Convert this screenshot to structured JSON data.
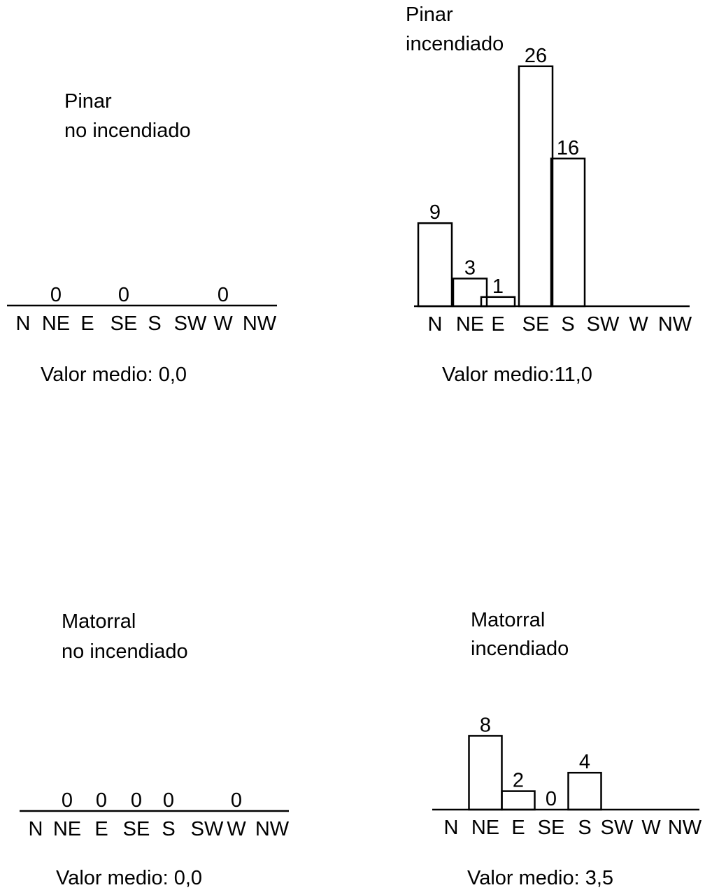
{
  "chart_data": [
    {
      "type": "bar",
      "title_lines": [
        "Pinar",
        "no incendiado"
      ],
      "categories": [
        "N",
        "NE",
        "E",
        "SE",
        "S",
        "SW",
        "W",
        "NW"
      ],
      "values": [
        null,
        0,
        null,
        0,
        null,
        null,
        0,
        null
      ],
      "data_labels": [
        "",
        "0",
        "",
        "0",
        "",
        "",
        "0",
        ""
      ],
      "ylim": [
        0,
        26
      ],
      "footer": "Valor medio: 0,0"
    },
    {
      "type": "bar",
      "title_lines": [
        "Pinar",
        "incendiado"
      ],
      "categories": [
        "N",
        "NE",
        "E",
        "SE",
        "S",
        "SW",
        "W",
        "NW"
      ],
      "values": [
        9,
        3,
        1,
        26,
        16,
        null,
        null,
        null
      ],
      "data_labels": [
        "9",
        "3",
        "1",
        "26",
        "16",
        "",
        "",
        ""
      ],
      "ylim": [
        0,
        26
      ],
      "footer": "Valor medio:11,0"
    },
    {
      "type": "bar",
      "title_lines": [
        "Matorral",
        "no incendiado"
      ],
      "categories": [
        "N",
        "NE",
        "E",
        "SE",
        "S",
        "SW",
        "W",
        "NW"
      ],
      "values": [
        null,
        0,
        0,
        0,
        0,
        null,
        0,
        null
      ],
      "data_labels": [
        "",
        "0",
        "0",
        "0",
        "0",
        "",
        "0",
        ""
      ],
      "ylim": [
        0,
        26
      ],
      "footer": "Valor medio: 0,0"
    },
    {
      "type": "bar",
      "title_lines": [
        "Matorral",
        "incendiado"
      ],
      "categories": [
        "N",
        "NE",
        "E",
        "SE",
        "S",
        "SW",
        "W",
        "NW"
      ],
      "values": [
        null,
        8,
        2,
        0,
        4,
        null,
        null,
        null
      ],
      "data_labels": [
        "",
        "8",
        "2",
        "0",
        "4",
        "",
        "",
        ""
      ],
      "ylim": [
        0,
        26
      ],
      "footer": "Valor medio: 3,5"
    }
  ]
}
